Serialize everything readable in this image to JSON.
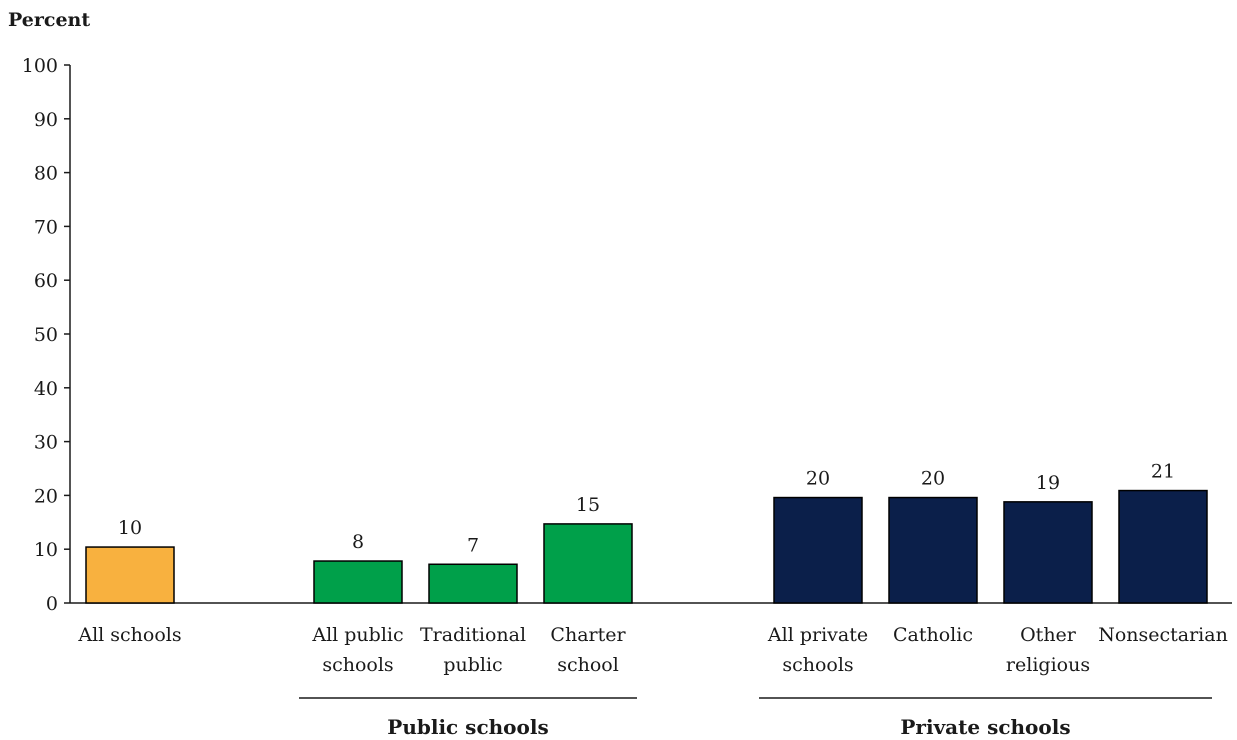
{
  "chart_data": {
    "type": "bar",
    "ylabel": "Percent",
    "ylim": [
      0,
      100
    ],
    "yticks": [
      0,
      10,
      20,
      30,
      40,
      50,
      60,
      70,
      80,
      90,
      100
    ],
    "grid": false,
    "categories": [
      "All schools",
      "All public schools",
      "Traditional public",
      "Charter school",
      "All private schools",
      "Catholic",
      "Other religious",
      "Nonsectarian"
    ],
    "category_lines": [
      [
        "All schools"
      ],
      [
        "All public",
        "schools"
      ],
      [
        "Traditional",
        "public"
      ],
      [
        "Charter",
        "school"
      ],
      [
        "All private",
        "schools"
      ],
      [
        "Catholic"
      ],
      [
        "Other",
        "religious"
      ],
      [
        "Nonsectarian"
      ]
    ],
    "values": [
      10.4,
      7.8,
      7.2,
      14.7,
      19.6,
      19.6,
      18.8,
      20.9
    ],
    "value_labels": [
      "10",
      "8",
      "7",
      "15",
      "20",
      "20",
      "19",
      "21"
    ],
    "bar_colors": [
      "#f8b13f",
      "#00a04a",
      "#00a04a",
      "#00a04a",
      "#0b1f4a",
      "#0b1f4a",
      "#0b1f4a",
      "#0b1f4a"
    ],
    "groups": [
      {
        "label": "Public schools",
        "categories": [
          "All public schools",
          "Traditional public",
          "Charter school"
        ]
      },
      {
        "label": "Private schools",
        "categories": [
          "All private schools",
          "Catholic",
          "Other religious",
          "Nonsectarian"
        ]
      }
    ]
  }
}
